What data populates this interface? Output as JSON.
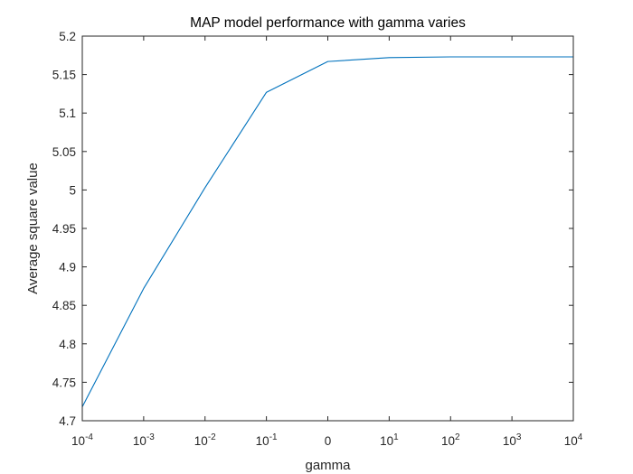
{
  "chart_data": {
    "type": "line",
    "title": "MAP model performance with gamma varies",
    "xlabel": "gamma",
    "ylabel": "Average square value",
    "x_tick_labels": [
      {
        "base": "10",
        "exp": "-4"
      },
      {
        "base": "10",
        "exp": "-3"
      },
      {
        "base": "10",
        "exp": "-2"
      },
      {
        "base": "10",
        "exp": "-1"
      },
      {
        "base": "0",
        "exp": ""
      },
      {
        "base": "10",
        "exp": "1"
      },
      {
        "base": "10",
        "exp": "2"
      },
      {
        "base": "10",
        "exp": "3"
      },
      {
        "base": "10",
        "exp": "4"
      }
    ],
    "ylim": [
      4.7,
      5.2
    ],
    "y_ticks": [
      4.7,
      4.75,
      4.8,
      4.85,
      4.9,
      4.95,
      5,
      5.05,
      5.1,
      5.15,
      5.2
    ],
    "y_tick_labels": [
      "4.7",
      "4.75",
      "4.8",
      "4.85",
      "4.9",
      "4.95",
      "5",
      "5.05",
      "5.1",
      "5.15",
      "5.2"
    ],
    "grid": false,
    "series": [
      {
        "color": "#0072bd",
        "values": [
          4.718,
          4.872,
          5.003,
          5.127,
          5.167,
          5.172,
          5.173,
          5.173,
          5.173
        ]
      }
    ]
  }
}
